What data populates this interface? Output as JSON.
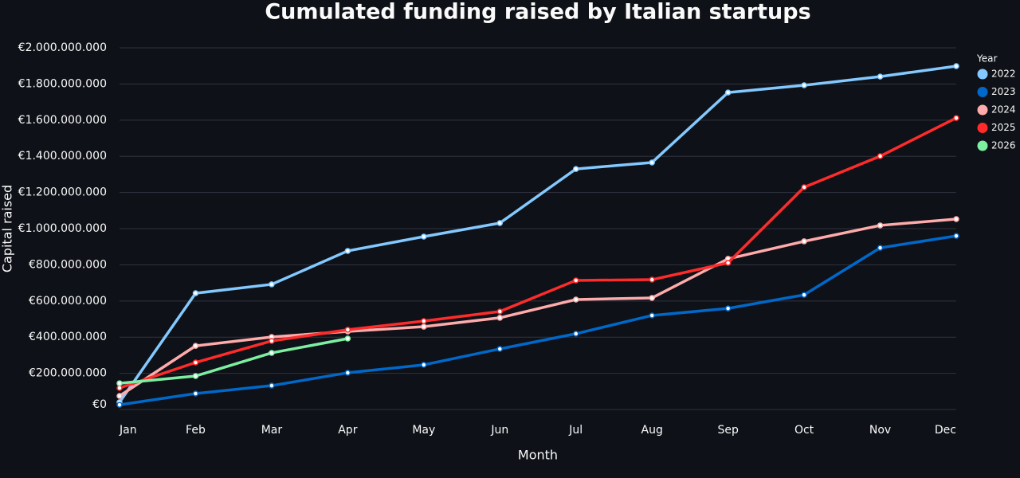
{
  "chart_data": {
    "type": "line",
    "title": "Cumulated funding raised by Italian startups",
    "x_label": "Month",
    "y_label": "Capital raised",
    "legend_title": "Year",
    "legend_position": "right",
    "grid": true,
    "categories": [
      "Jan",
      "Feb",
      "Mar",
      "Apr",
      "May",
      "Jun",
      "Jul",
      "Aug",
      "Sep",
      "Oct",
      "Nov",
      "Dec"
    ],
    "series": [
      {
        "name": "2022",
        "color": "#83c9ff",
        "values": [
          40000000,
          643000000,
          692000000,
          877000000,
          956000000,
          1031000000,
          1330000000,
          1366000000,
          1753000000,
          1793000000,
          1841000000,
          1899000000
        ]
      },
      {
        "name": "2023",
        "color": "#0068c9",
        "values": [
          26000000,
          88000000,
          132000000,
          203000000,
          247000000,
          335000000,
          419000000,
          520000000,
          559000000,
          634000000,
          894000000,
          960000000
        ]
      },
      {
        "name": "2024",
        "color": "#ffabab",
        "values": [
          75000000,
          352000000,
          401000000,
          432000000,
          458000000,
          507000000,
          608000000,
          617000000,
          833000000,
          930000000,
          1018000000,
          1053000000
        ]
      },
      {
        "name": "2025",
        "color": "#ff2b2b",
        "values": [
          119000000,
          260000000,
          379000000,
          441000000,
          489000000,
          542000000,
          714000000,
          718000000,
          811000000,
          1229000000,
          1401000000,
          1612000000
        ]
      },
      {
        "name": "2026",
        "color": "#7defa1",
        "values": [
          145000000,
          185000000,
          313000000,
          392000000,
          null,
          null,
          null,
          null,
          null,
          null,
          null,
          null
        ]
      }
    ],
    "ylim": [
      0,
      2050000000
    ],
    "yticks": [
      {
        "value": 0,
        "label": "€0"
      },
      {
        "value": 200000000,
        "label": "€200.000.000"
      },
      {
        "value": 400000000,
        "label": "€400.000.000"
      },
      {
        "value": 600000000,
        "label": "€600.000.000"
      },
      {
        "value": 800000000,
        "label": "€800.000.000"
      },
      {
        "value": 1000000000,
        "label": "€1.000.000.000"
      },
      {
        "value": 1200000000,
        "label": "€1.200.000.000"
      },
      {
        "value": 1400000000,
        "label": "€1.400.000.000"
      },
      {
        "value": 1600000000,
        "label": "€1.600.000.000"
      },
      {
        "value": 1800000000,
        "label": "€1.800.000.000"
      },
      {
        "value": 2000000000,
        "label": "€2.000.000.000"
      }
    ]
  }
}
